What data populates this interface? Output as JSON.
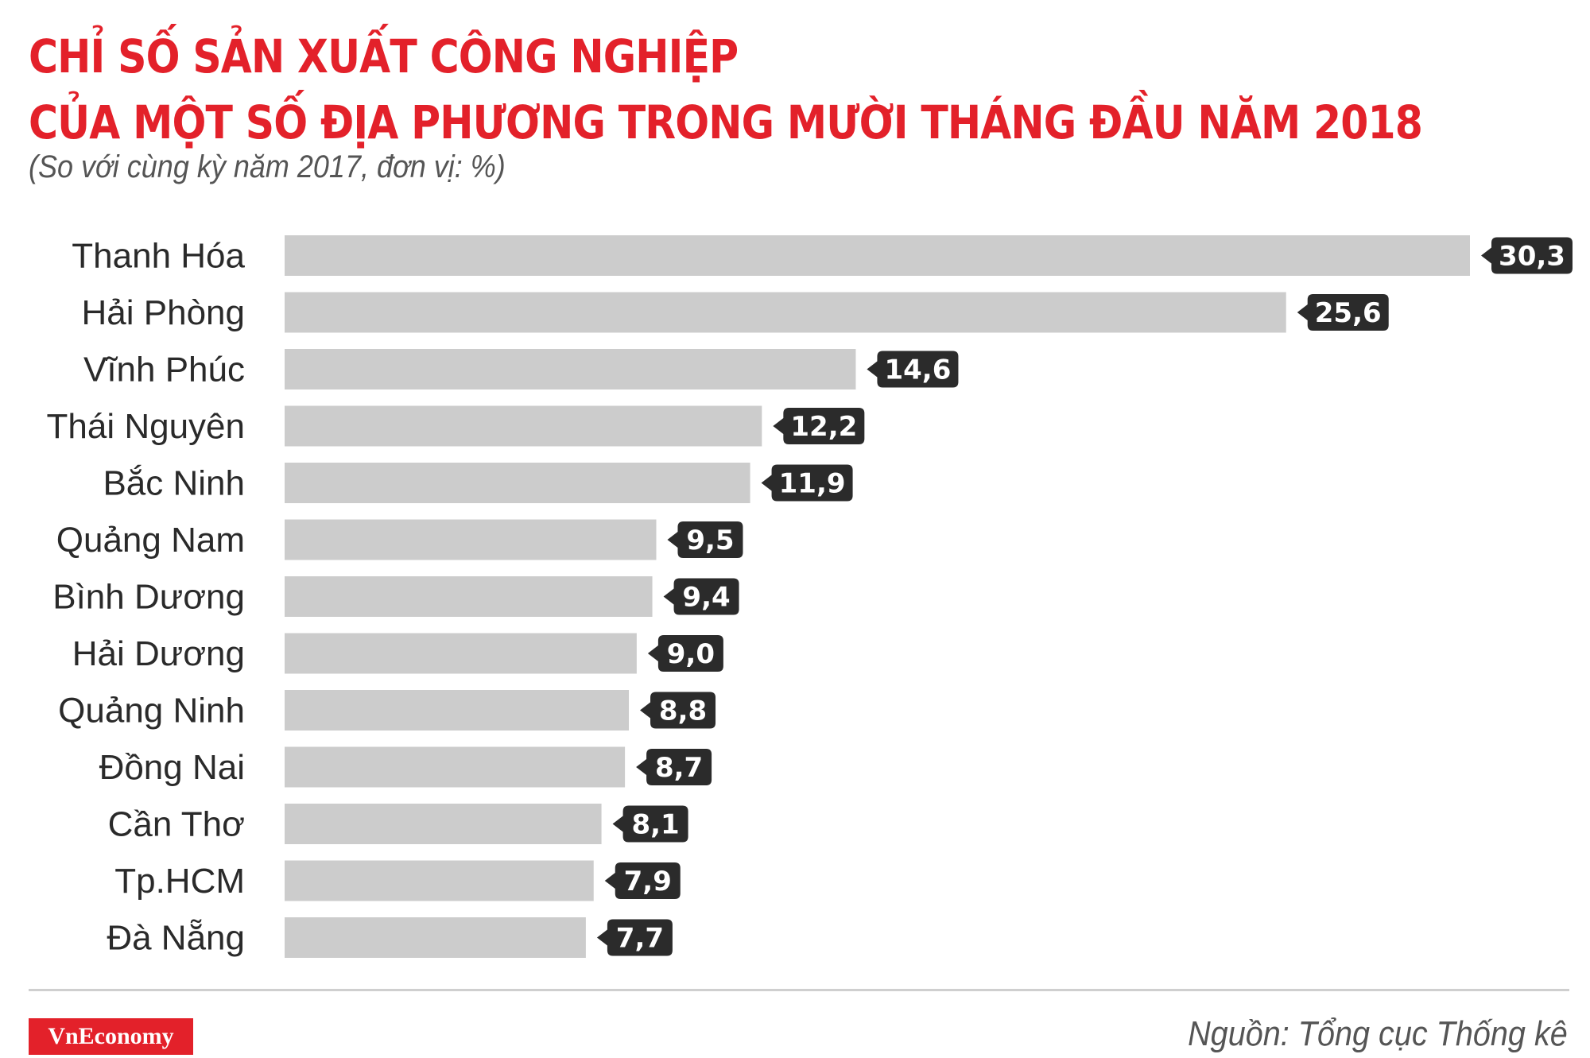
{
  "header": {
    "title_line1": "CHỈ SỐ SẢN XUẤT CÔNG NGHIỆP",
    "title_line2": "CỦA MỘT SỐ ĐỊA PHƯƠNG TRONG MƯỜI THÁNG ĐẦU NĂM 2018",
    "subtitle": "(So với cùng kỳ năm 2017, đơn vị: %)"
  },
  "footer": {
    "brand": "VnEconomy",
    "source": "Nguồn: Tổng cục Thống kê"
  },
  "colors": {
    "title": "#e3212a",
    "bar": "#cccccc",
    "value_badge": "#2b2b2b",
    "brand_bg": "#e3212a"
  },
  "chart_data": {
    "type": "bar",
    "orientation": "horizontal",
    "title": "CHỈ SỐ SẢN XUẤT CÔNG NGHIỆP CỦA MỘT SỐ ĐỊA PHƯƠNG TRONG MƯỜI THÁNG ĐẦU NĂM 2018",
    "subtitle": "(So với cùng kỳ năm 2017, đơn vị: %)",
    "categories": [
      "Thanh Hóa",
      "Hải Phòng",
      "Vĩnh Phúc",
      "Thái Nguyên",
      "Bắc Ninh",
      "Quảng Nam",
      "Bình Dương",
      "Hải Dương",
      "Quảng Ninh",
      "Đồng Nai",
      "Cần Thơ",
      "Tp.HCM",
      "Đà Nẵng"
    ],
    "values": [
      30.3,
      25.6,
      14.6,
      12.2,
      11.9,
      9.5,
      9.4,
      9.0,
      8.8,
      8.7,
      8.1,
      7.9,
      7.7
    ],
    "value_labels": [
      "30,3",
      "25,6",
      "14,6",
      "12,2",
      "11,9",
      "9,5",
      "9,4",
      "9,0",
      "8,8",
      "8,7",
      "8,1",
      "7,9",
      "7,7"
    ],
    "xlim": [
      0,
      30.3
    ],
    "grid": false,
    "legend": "none"
  }
}
